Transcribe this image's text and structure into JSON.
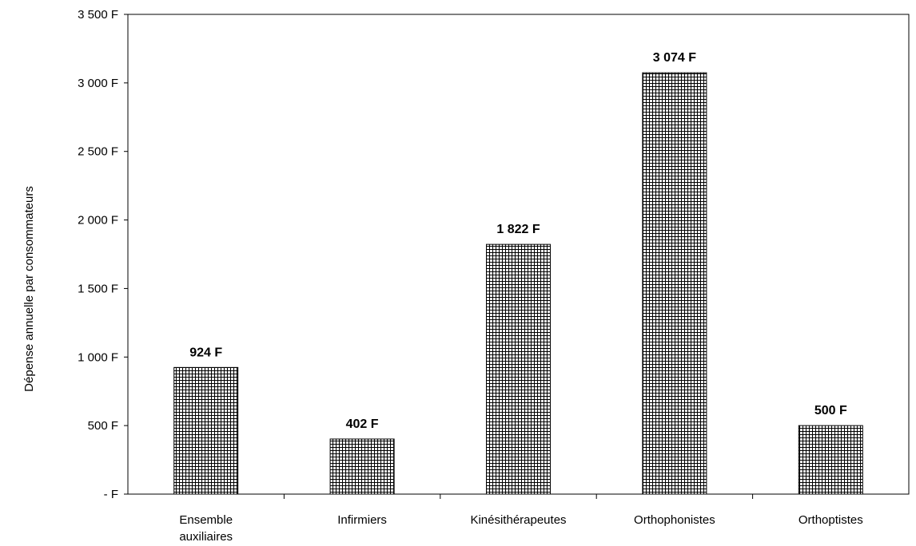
{
  "chart_data": {
    "type": "bar",
    "categories": [
      "Ensemble auxiliaires",
      "Infirmiers",
      "Kinésithérapeutes",
      "Orthophonistes",
      "Orthoptistes"
    ],
    "category_lines": [
      [
        "Ensemble",
        "auxiliaires"
      ],
      [
        "Infirmiers"
      ],
      [
        "Kinésithérapeutes"
      ],
      [
        "Orthophonistes"
      ],
      [
        "Orthoptistes"
      ]
    ],
    "values": [
      924,
      402,
      1822,
      3074,
      500
    ],
    "value_labels": [
      "924 F",
      "402 F",
      "1 822 F",
      "3 074 F",
      "500 F"
    ],
    "title": "",
    "xlabel": "",
    "ylabel": "Dépense annuelle par consommateurs",
    "ylim": [
      0,
      3500
    ],
    "yticks": [
      0,
      500,
      1000,
      1500,
      2000,
      2500,
      3000,
      3500
    ],
    "ytick_labels": [
      "- F",
      "500 F",
      "1 000 F",
      "1 500 F",
      "2 000 F",
      "2 500 F",
      "3 000 F",
      "3 500 F"
    ],
    "grid": false,
    "legend": "none",
    "bar_fill": "crosshatch",
    "colors": {
      "bar_line": "#000000",
      "bar_background": "#ffffff",
      "axis": "#000000"
    }
  }
}
